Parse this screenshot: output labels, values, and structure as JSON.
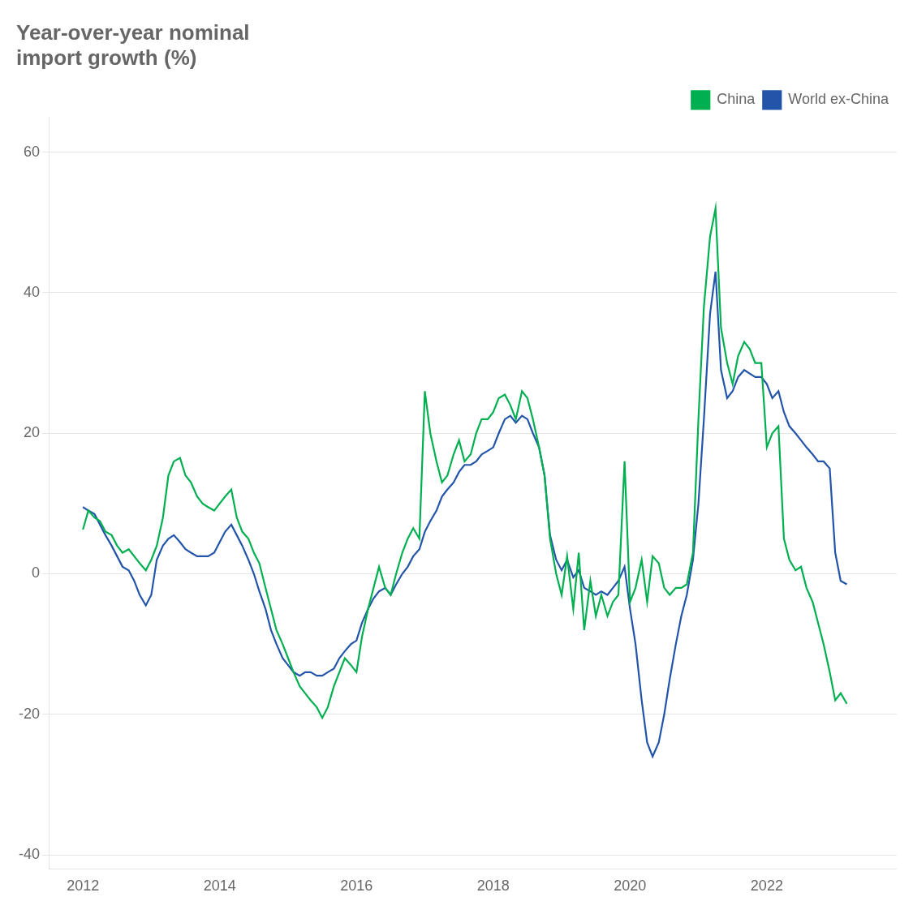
{
  "chart_data": {
    "type": "line",
    "title": "Year-over-year nominal\nimport growth (%)",
    "x": [
      2012.0,
      2012.08,
      2012.17,
      2012.25,
      2012.33,
      2012.42,
      2012.5,
      2012.58,
      2012.67,
      2012.75,
      2012.83,
      2012.92,
      2013.0,
      2013.08,
      2013.17,
      2013.25,
      2013.33,
      2013.42,
      2013.5,
      2013.58,
      2013.67,
      2013.75,
      2013.83,
      2013.92,
      2014.0,
      2014.08,
      2014.17,
      2014.25,
      2014.33,
      2014.42,
      2014.5,
      2014.58,
      2014.67,
      2014.75,
      2014.83,
      2014.92,
      2015.0,
      2015.08,
      2015.17,
      2015.25,
      2015.33,
      2015.42,
      2015.5,
      2015.58,
      2015.67,
      2015.75,
      2015.83,
      2015.92,
      2016.0,
      2016.08,
      2016.17,
      2016.25,
      2016.33,
      2016.42,
      2016.5,
      2016.58,
      2016.67,
      2016.75,
      2016.83,
      2016.92,
      2017.0,
      2017.08,
      2017.17,
      2017.25,
      2017.33,
      2017.42,
      2017.5,
      2017.58,
      2017.67,
      2017.75,
      2017.83,
      2017.92,
      2018.0,
      2018.08,
      2018.17,
      2018.25,
      2018.33,
      2018.42,
      2018.5,
      2018.58,
      2018.67,
      2018.75,
      2018.83,
      2018.92,
      2019.0,
      2019.08,
      2019.17,
      2019.25,
      2019.33,
      2019.42,
      2019.5,
      2019.58,
      2019.67,
      2019.75,
      2019.83,
      2019.92,
      2020.0,
      2020.08,
      2020.17,
      2020.25,
      2020.33,
      2020.42,
      2020.5,
      2020.58,
      2020.67,
      2020.75,
      2020.83,
      2020.92,
      2021.0,
      2021.08,
      2021.17,
      2021.25,
      2021.33,
      2021.42,
      2021.5,
      2021.58,
      2021.67,
      2021.75,
      2021.83,
      2021.92,
      2022.0,
      2022.08,
      2022.17,
      2022.25,
      2022.33,
      2022.42,
      2022.5,
      2022.58,
      2022.67,
      2022.75,
      2022.83,
      2022.92,
      2023.0,
      2023.08,
      2023.17
    ],
    "series": [
      {
        "name": "China",
        "color": "#00b050",
        "values": [
          6.3,
          9.0,
          8.0,
          7.5,
          6.0,
          5.5,
          4.0,
          3.0,
          3.5,
          2.5,
          1.5,
          0.5,
          2.0,
          4.0,
          8.0,
          14.0,
          16.0,
          16.5,
          14.0,
          13.0,
          11.0,
          10.0,
          9.5,
          9.0,
          10.0,
          11.0,
          12.0,
          8.0,
          6.0,
          5.0,
          3.0,
          1.5,
          -2.0,
          -5.0,
          -8.0,
          -10.0,
          -12.0,
          -14.0,
          -16.0,
          -17.0,
          -18.0,
          -19.0,
          -20.5,
          -19.0,
          -16.0,
          -14.0,
          -12.0,
          -13.0,
          -14.0,
          -9.0,
          -5.0,
          -2.0,
          1.0,
          -2.0,
          -3.0,
          0.0,
          3.0,
          5.0,
          6.5,
          5.0,
          26.0,
          20.0,
          16.0,
          13.0,
          14.0,
          17.0,
          19.0,
          16.0,
          17.0,
          20.0,
          22.0,
          22.0,
          23.0,
          25.0,
          25.5,
          24.0,
          22.0,
          26.0,
          25.0,
          22.0,
          18.0,
          14.0,
          5.0,
          0.0,
          -3.0,
          2.5,
          -5.0,
          3.0,
          -8.0,
          -1.0,
          -6.0,
          -3.0,
          -6.0,
          -4.0,
          -3.0,
          16.0,
          -4.0,
          -2.0,
          2.0,
          -4.0,
          2.5,
          1.5,
          -2.0,
          -3.0,
          -2.0,
          -2.0,
          -1.5,
          3.0,
          22.0,
          38.0,
          48.0,
          52.0,
          35.0,
          30.0,
          27.0,
          31.0,
          33.0,
          32.0,
          30.0,
          30.0,
          18.0,
          20.0,
          21.0,
          5.0,
          2.0,
          0.5,
          1.0,
          -2.0,
          -4.0,
          -7.0,
          -10.0,
          -14.0,
          -18.0,
          -17.0,
          -18.5
        ]
      },
      {
        "name": "World ex-China",
        "color": "#2255aa",
        "values": [
          9.5,
          9.0,
          8.5,
          7.0,
          5.5,
          4.0,
          2.5,
          1.0,
          0.5,
          -1.0,
          -3.0,
          -4.5,
          -3.0,
          2.0,
          4.0,
          5.0,
          5.5,
          4.5,
          3.5,
          3.0,
          2.5,
          2.5,
          2.5,
          3.0,
          4.5,
          6.0,
          7.0,
          5.5,
          4.0,
          2.0,
          0.0,
          -2.5,
          -5.0,
          -8.0,
          -10.0,
          -12.0,
          -13.0,
          -14.0,
          -14.5,
          -14.0,
          -14.0,
          -14.5,
          -14.5,
          -14.0,
          -13.5,
          -12.0,
          -11.0,
          -10.0,
          -9.5,
          -7.0,
          -5.0,
          -3.5,
          -2.5,
          -2.0,
          -3.0,
          -1.5,
          0.0,
          1.0,
          2.5,
          3.5,
          6.0,
          7.5,
          9.0,
          11.0,
          12.0,
          13.0,
          14.5,
          15.5,
          15.5,
          16.0,
          17.0,
          17.5,
          18.0,
          20.0,
          22.0,
          22.5,
          21.5,
          22.5,
          22.0,
          20.0,
          18.0,
          14.0,
          5.5,
          2.0,
          0.5,
          2.0,
          -0.5,
          0.5,
          -2.0,
          -2.5,
          -3.0,
          -2.5,
          -3.0,
          -2.0,
          -1.0,
          1.0,
          -5.0,
          -10.0,
          -18.0,
          -24.0,
          -26.0,
          -24.0,
          -20.0,
          -15.0,
          -10.0,
          -6.0,
          -3.0,
          2.0,
          10.0,
          22.0,
          37.0,
          43.0,
          29.0,
          25.0,
          26.0,
          28.0,
          29.0,
          28.5,
          28.0,
          28.0,
          27.0,
          25.0,
          26.0,
          23.0,
          21.0,
          20.0,
          19.0,
          18.0,
          17.0,
          16.0,
          16.0,
          15.0,
          3.0,
          -1.0,
          -1.5
        ]
      }
    ],
    "xlim": [
      2011.5,
      2023.9
    ],
    "xticks": [
      2012,
      2014,
      2016,
      2018,
      2020,
      2022
    ],
    "ylim": [
      -42,
      65
    ],
    "yticks": [
      -40,
      -20,
      0,
      20,
      40,
      60
    ],
    "grid": "y",
    "legend": "upper right"
  }
}
